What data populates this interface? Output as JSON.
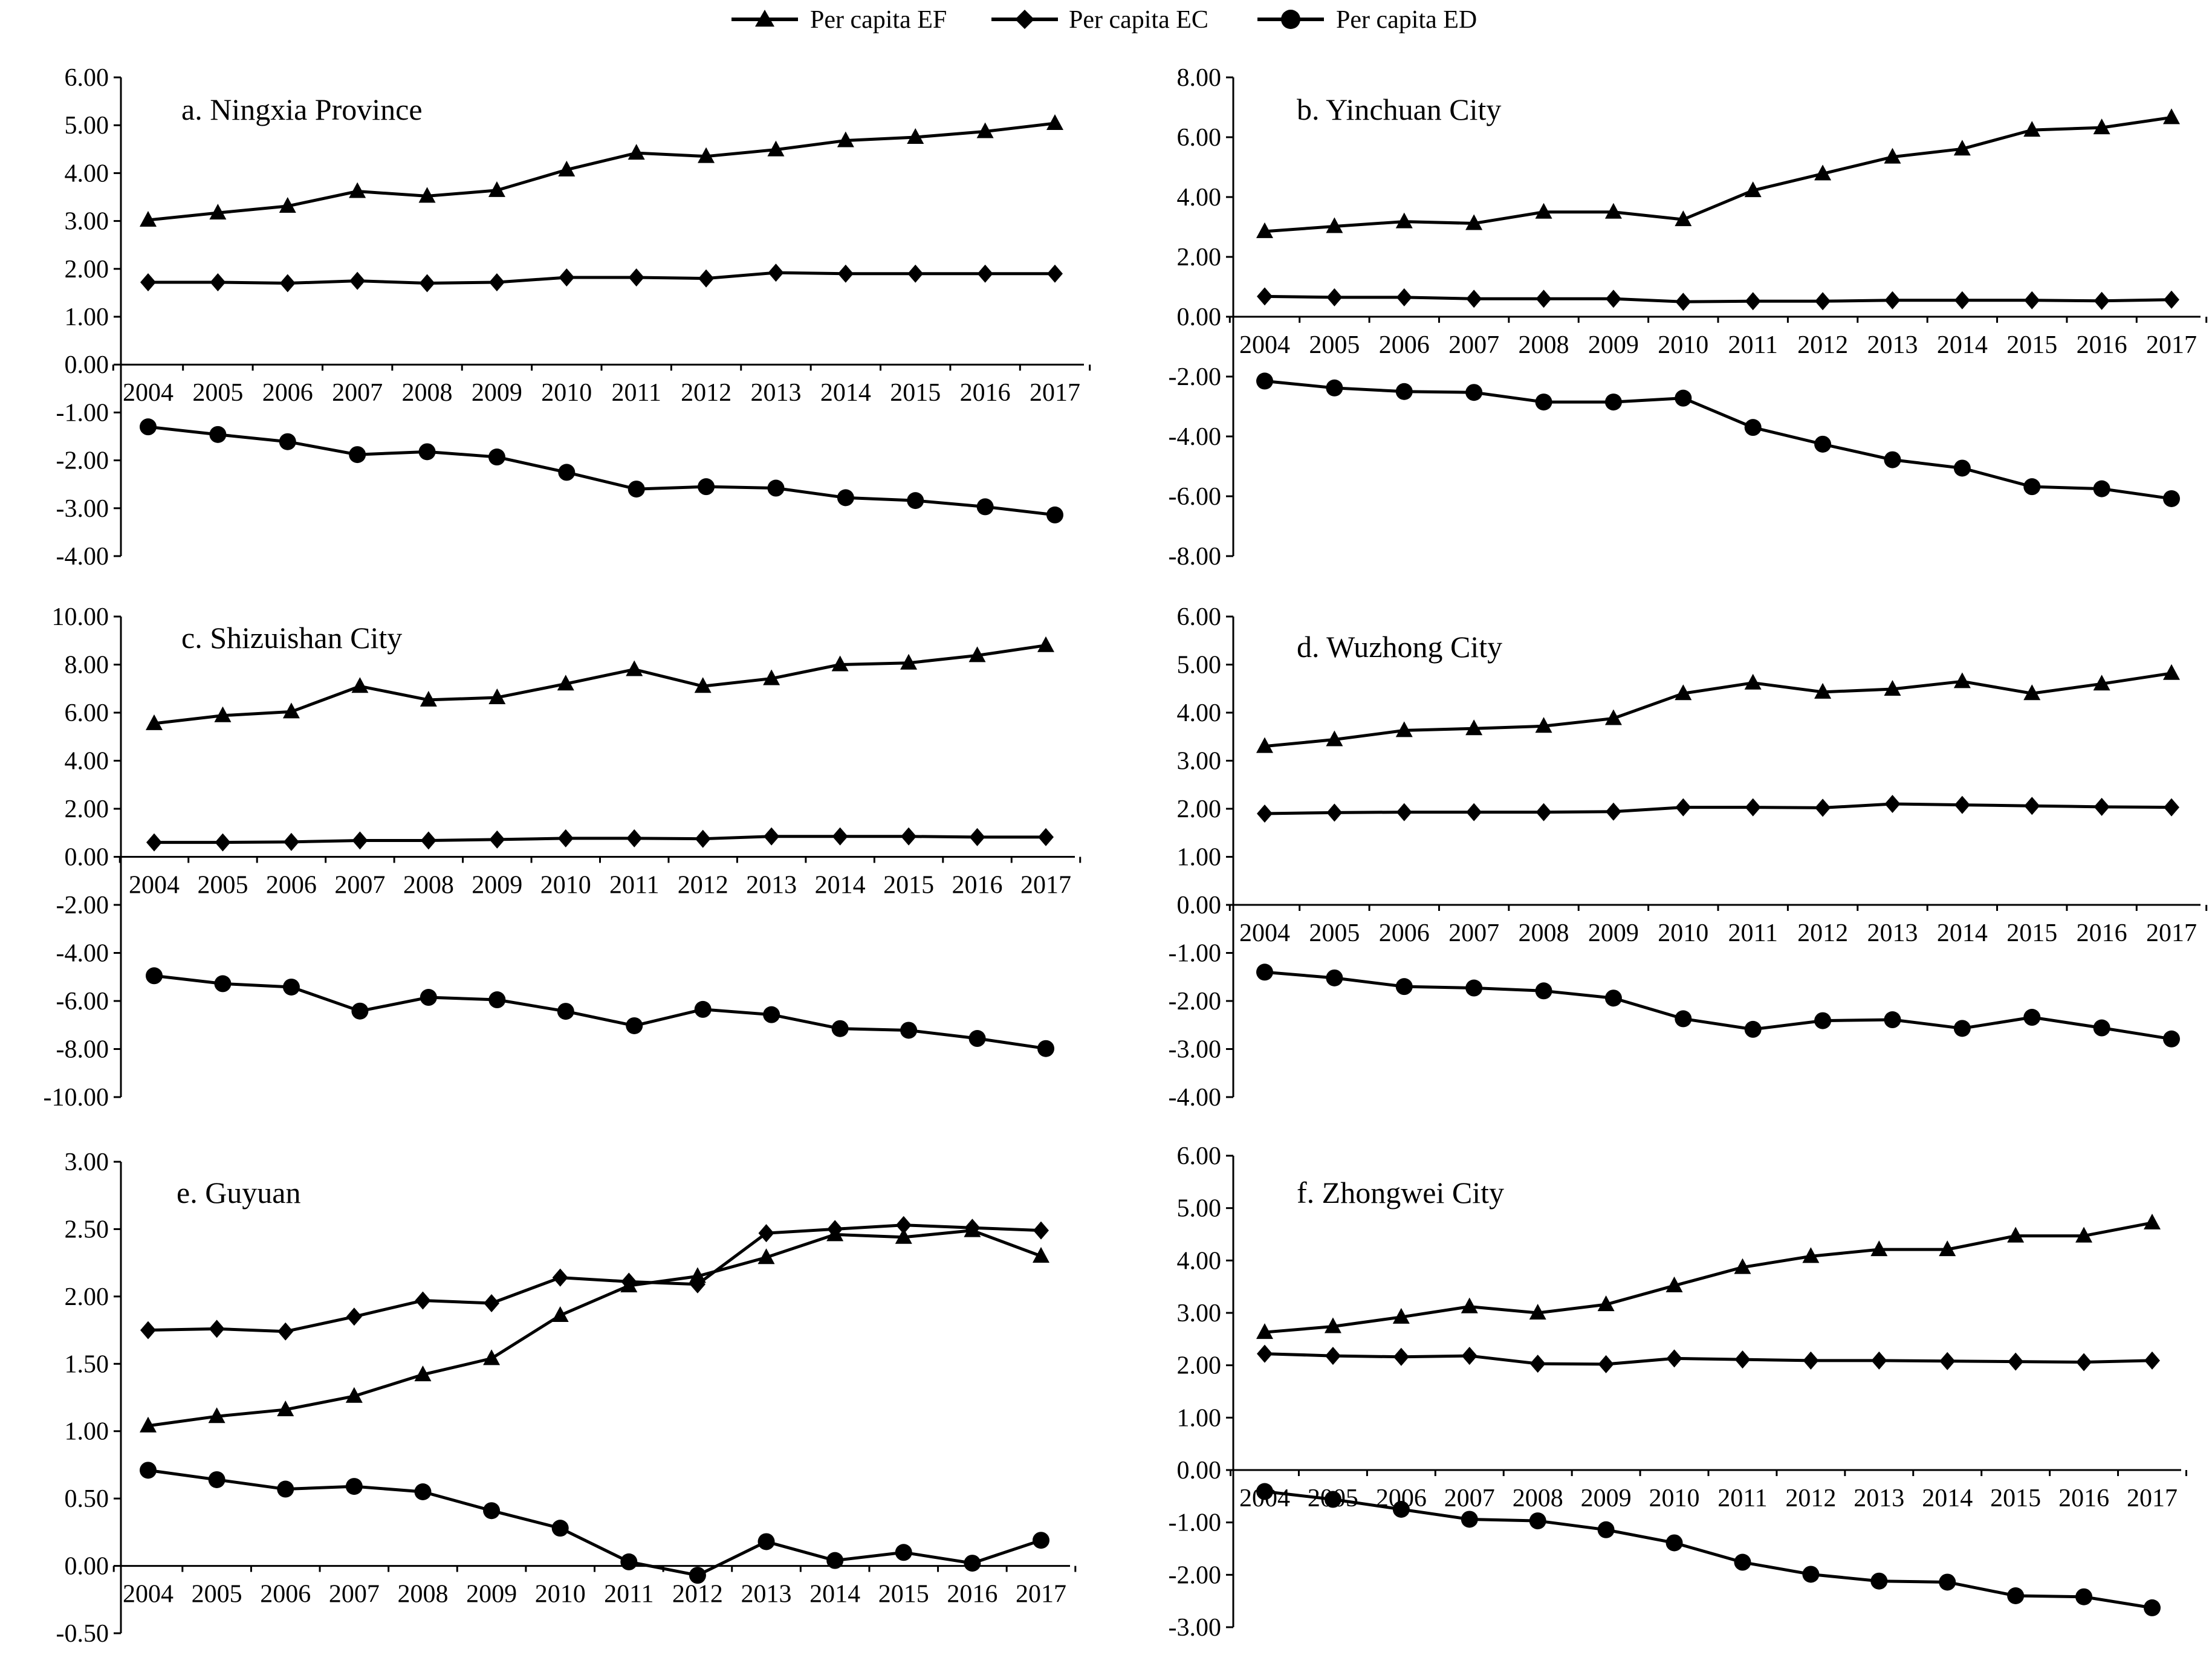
{
  "legend": {
    "entries": [
      {
        "label": "Per capita EF",
        "marker": "triangle"
      },
      {
        "label": "Per capita EC",
        "marker": "diamond"
      },
      {
        "label": "Per capita ED",
        "marker": "circle"
      }
    ]
  },
  "chart_data": [
    {
      "type": "line",
      "title": "a. Ningxia Province",
      "categories": [
        "2004",
        "2005",
        "2006",
        "2007",
        "2008",
        "2009",
        "2010",
        "2011",
        "2012",
        "2013",
        "2014",
        "2015",
        "2016",
        "2017"
      ],
      "ylim": [
        -4,
        6
      ],
      "yticks": [
        "6.00",
        "5.00",
        "4.00",
        "3.00",
        "2.00",
        "1.00",
        "0.00",
        "-1.00",
        "-2.00",
        "-3.00",
        "-4.00"
      ],
      "series": [
        {
          "name": "Per capita EF",
          "values": [
            3.02,
            3.17,
            3.31,
            3.62,
            3.52,
            3.64,
            4.07,
            4.42,
            4.35,
            4.49,
            4.68,
            4.75,
            4.87,
            5.04
          ]
        },
        {
          "name": "Per capita EC",
          "values": [
            1.72,
            1.72,
            1.7,
            1.75,
            1.7,
            1.72,
            1.82,
            1.82,
            1.8,
            1.92,
            1.9,
            1.9,
            1.9,
            1.9
          ]
        },
        {
          "name": "Per capita ED",
          "values": [
            -1.3,
            -1.46,
            -1.61,
            -1.88,
            -1.82,
            -1.93,
            -2.25,
            -2.6,
            -2.55,
            -2.58,
            -2.78,
            -2.84,
            -2.97,
            -3.14
          ]
        }
      ]
    },
    {
      "type": "line",
      "title": "b. Yinchuan City",
      "categories": [
        "2004",
        "2005",
        "2006",
        "2007",
        "2008",
        "2009",
        "2010",
        "2011",
        "2012",
        "2013",
        "2014",
        "2015",
        "2016",
        "2017"
      ],
      "ylim": [
        -8,
        8
      ],
      "yticks": [
        "8.00",
        "6.00",
        "4.00",
        "2.00",
        "0.00",
        "-2.00",
        "-4.00",
        "-6.00",
        "-8.00"
      ],
      "series": [
        {
          "name": "Per capita EF",
          "values": [
            2.85,
            3.02,
            3.18,
            3.12,
            3.5,
            3.5,
            3.25,
            4.22,
            4.78,
            5.34,
            5.61,
            6.24,
            6.32,
            6.66
          ]
        },
        {
          "name": "Per capita EC",
          "values": [
            0.68,
            0.65,
            0.65,
            0.6,
            0.6,
            0.6,
            0.5,
            0.52,
            0.52,
            0.55,
            0.55,
            0.55,
            0.53,
            0.57
          ]
        },
        {
          "name": "Per capita ED",
          "values": [
            -2.15,
            -2.38,
            -2.5,
            -2.53,
            -2.85,
            -2.85,
            -2.72,
            -3.7,
            -4.26,
            -4.78,
            -5.06,
            -5.68,
            -5.75,
            -6.08
          ]
        }
      ]
    },
    {
      "type": "line",
      "title": "c. Shizuishan City",
      "categories": [
        "2004",
        "2005",
        "2006",
        "2007",
        "2008",
        "2009",
        "2010",
        "2011",
        "2012",
        "2013",
        "2014",
        "2015",
        "2016",
        "2017"
      ],
      "ylim": [
        -10,
        10
      ],
      "yticks": [
        "10.00",
        "8.00",
        "6.00",
        "4.00",
        "2.00",
        "0.00",
        "-2.00",
        "-4.00",
        "-6.00",
        "-8.00",
        "-10.00"
      ],
      "series": [
        {
          "name": "Per capita EF",
          "values": [
            5.55,
            5.88,
            6.04,
            7.1,
            6.53,
            6.63,
            7.2,
            7.8,
            7.1,
            7.42,
            8.0,
            8.07,
            8.38,
            8.8
          ]
        },
        {
          "name": "Per capita EC",
          "values": [
            0.6,
            0.6,
            0.62,
            0.68,
            0.68,
            0.72,
            0.77,
            0.77,
            0.75,
            0.85,
            0.85,
            0.85,
            0.82,
            0.82
          ]
        },
        {
          "name": "Per capita ED",
          "values": [
            -4.95,
            -5.28,
            -5.42,
            -6.42,
            -5.85,
            -5.95,
            -6.43,
            -7.03,
            -6.35,
            -6.57,
            -7.15,
            -7.22,
            -7.56,
            -7.98
          ]
        }
      ]
    },
    {
      "type": "line",
      "title": "d. Wuzhong City",
      "categories": [
        "2004",
        "2005",
        "2006",
        "2007",
        "2008",
        "2009",
        "2010",
        "2011",
        "2012",
        "2013",
        "2014",
        "2015",
        "2016",
        "2017"
      ],
      "ylim": [
        -4,
        6
      ],
      "yticks": [
        "6.00",
        "5.00",
        "4.00",
        "3.00",
        "2.00",
        "1.00",
        "0.00",
        "-1.00",
        "-2.00",
        "-3.00",
        "-4.00"
      ],
      "series": [
        {
          "name": "Per capita EF",
          "values": [
            3.3,
            3.44,
            3.63,
            3.67,
            3.72,
            3.88,
            4.4,
            4.62,
            4.43,
            4.49,
            4.65,
            4.4,
            4.6,
            4.82
          ]
        },
        {
          "name": "Per capita EC",
          "values": [
            1.9,
            1.92,
            1.93,
            1.93,
            1.93,
            1.94,
            2.03,
            2.03,
            2.02,
            2.1,
            2.08,
            2.06,
            2.04,
            2.03
          ]
        },
        {
          "name": "Per capita ED",
          "values": [
            -1.4,
            -1.52,
            -1.7,
            -1.73,
            -1.79,
            -1.94,
            -2.37,
            -2.59,
            -2.41,
            -2.39,
            -2.57,
            -2.34,
            -2.56,
            -2.79
          ]
        }
      ]
    },
    {
      "type": "line",
      "title": "e. Guyuan",
      "categories": [
        "2004",
        "2005",
        "2006",
        "2007",
        "2008",
        "2009",
        "2010",
        "2011",
        "2012",
        "2013",
        "2014",
        "2015",
        "2016",
        "2017"
      ],
      "ylim": [
        -0.5,
        3
      ],
      "yticks": [
        "3.00",
        "2.50",
        "2.00",
        "1.50",
        "1.00",
        "0.50",
        "0.00",
        "-0.50"
      ],
      "series": [
        {
          "name": "Per capita EF",
          "values": [
            1.04,
            1.11,
            1.16,
            1.26,
            1.42,
            1.54,
            1.86,
            2.08,
            2.15,
            2.29,
            2.46,
            2.44,
            2.49,
            2.3
          ]
        },
        {
          "name": "Per capita EC",
          "values": [
            1.75,
            1.76,
            1.74,
            1.85,
            1.97,
            1.95,
            2.14,
            2.11,
            2.09,
            2.47,
            2.5,
            2.53,
            2.51,
            2.49
          ]
        },
        {
          "name": "Per capita ED",
          "values": [
            0.71,
            0.64,
            0.57,
            0.59,
            0.55,
            0.41,
            0.28,
            0.03,
            -0.07,
            0.18,
            0.04,
            0.1,
            0.02,
            0.19
          ]
        }
      ]
    },
    {
      "type": "line",
      "title": "f. Zhongwei  City",
      "categories": [
        "2004",
        "2005",
        "2006",
        "2007",
        "2008",
        "2009",
        "2010",
        "2011",
        "2012",
        "2013",
        "2014",
        "2015",
        "2016",
        "2017"
      ],
      "ylim": [
        -3,
        6
      ],
      "yticks": [
        "6.00",
        "5.00",
        "4.00",
        "3.00",
        "2.00",
        "1.00",
        "0.00",
        "-1.00",
        "-2.00",
        "-3.00"
      ],
      "series": [
        {
          "name": "Per capita EF",
          "values": [
            2.63,
            2.74,
            2.92,
            3.12,
            3.0,
            3.16,
            3.52,
            3.87,
            4.08,
            4.21,
            4.21,
            4.47,
            4.47,
            4.72
          ]
        },
        {
          "name": "Per capita EC",
          "values": [
            2.22,
            2.18,
            2.16,
            2.18,
            2.03,
            2.02,
            2.13,
            2.11,
            2.09,
            2.09,
            2.08,
            2.07,
            2.06,
            2.09
          ]
        },
        {
          "name": "Per capita ED",
          "values": [
            -0.41,
            -0.56,
            -0.75,
            -0.94,
            -0.97,
            -1.14,
            -1.39,
            -1.76,
            -1.99,
            -2.12,
            -2.14,
            -2.4,
            -2.42,
            -2.63
          ]
        }
      ]
    }
  ]
}
